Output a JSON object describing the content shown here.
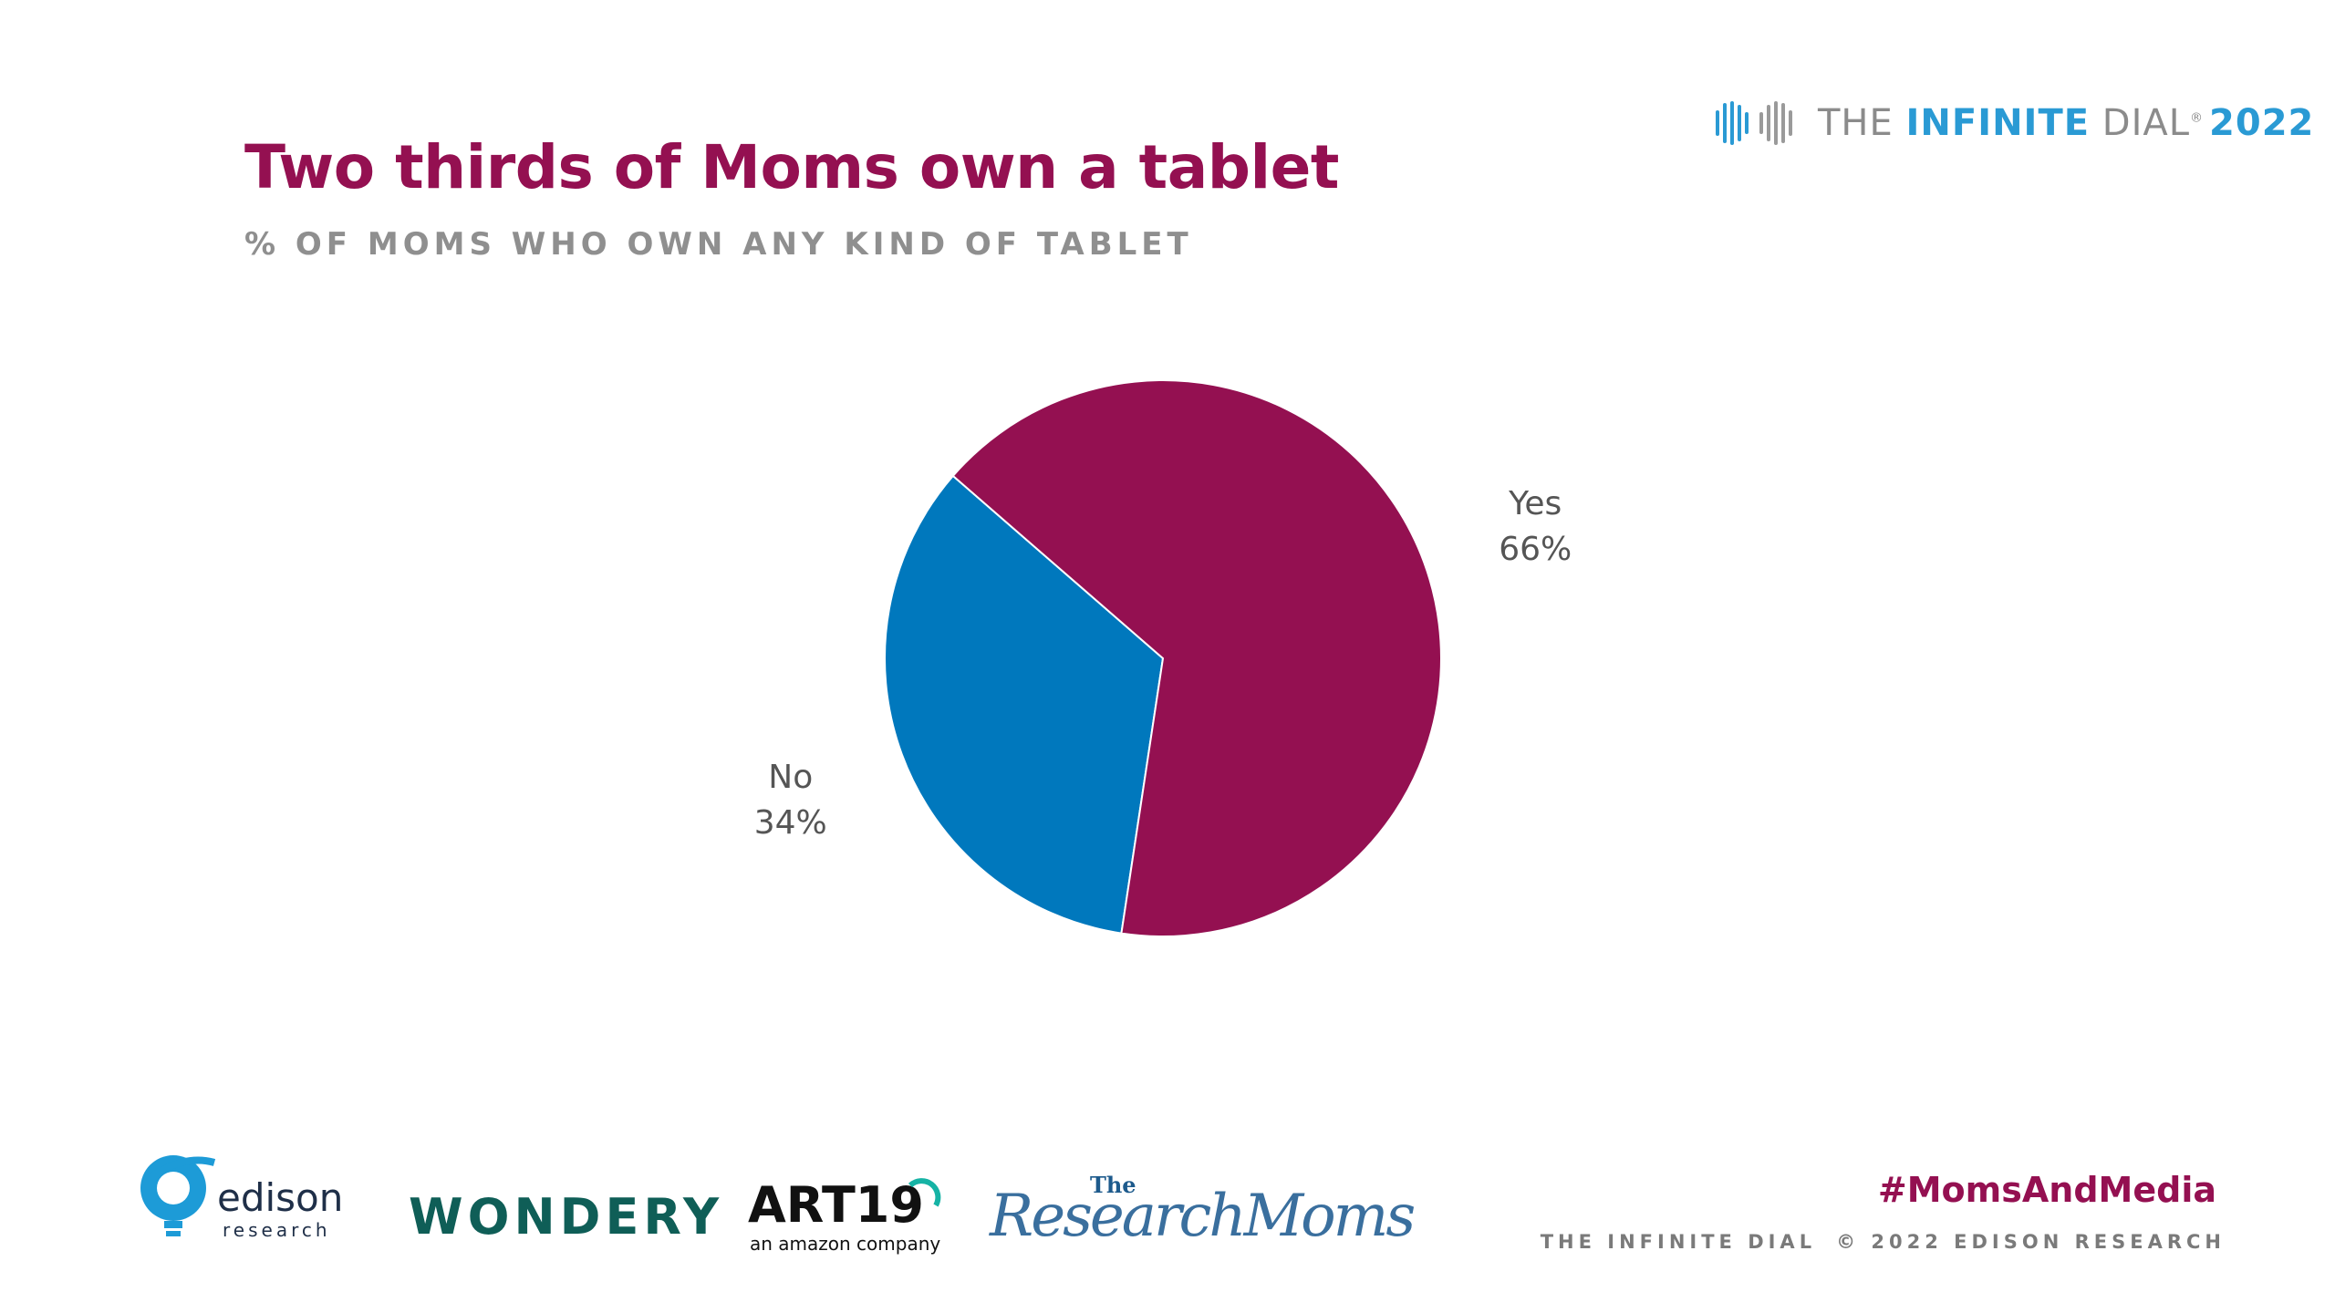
{
  "header": {
    "title": "Two thirds of Moms own a tablet",
    "subtitle": "% OF MOMS WHO OWN ANY KIND OF TABLET"
  },
  "brand": {
    "the": "THE",
    "infinite": "INFINITE",
    "dial": "DIAL",
    "year": "2022",
    "icon": "infinity-logo-icon"
  },
  "chart_data": {
    "type": "pie",
    "slices": [
      {
        "label": "Yes",
        "value": 66,
        "value_label": "66%",
        "color": "#941051"
      },
      {
        "label": "No",
        "value": 34,
        "value_label": "34%",
        "color": "#0078bd"
      }
    ]
  },
  "footer": {
    "hashtag": "#MomsAndMedia",
    "left": "THE INFINITE DIAL",
    "right": "© 2022 EDISON RESEARCH"
  },
  "logos": {
    "edison_name": "edison",
    "edison_sub": "research",
    "wondery": "WONDERY",
    "art19": "ART19",
    "art19_sub": "an amazon company",
    "research_moms_the": "The",
    "research_moms": "ResearchMoms"
  },
  "colors": {
    "accent": "#941051",
    "blue": "#0078bd",
    "brand_blue": "#2a9ad4"
  }
}
